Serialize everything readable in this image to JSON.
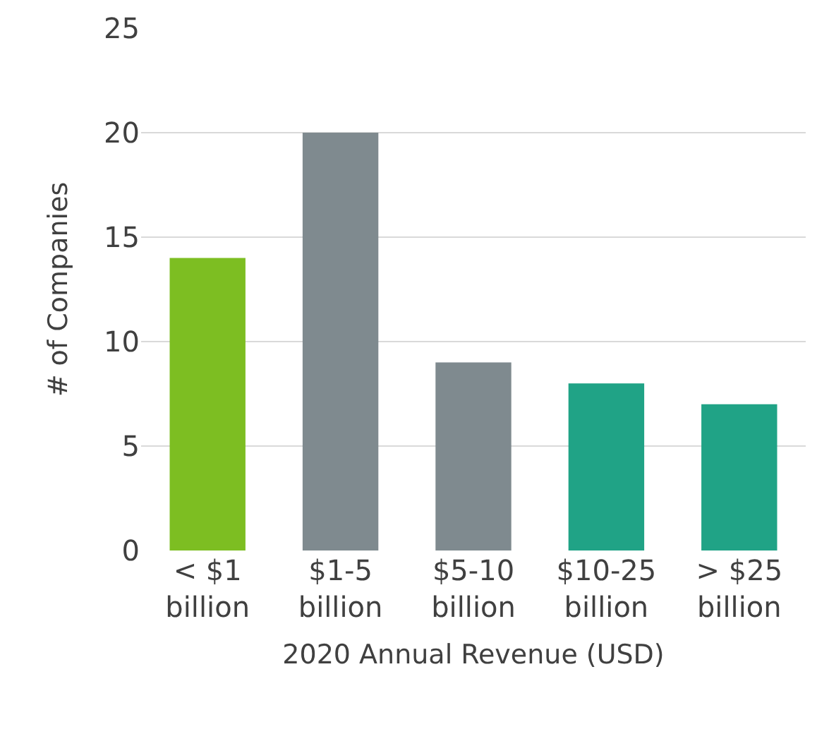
{
  "chart_data": {
    "type": "bar",
    "xlabel": "2020 Annual Revenue (USD)",
    "ylabel": "# of Companies",
    "categories": [
      "< $1\nbillion",
      "$1-5\nbillion",
      "$5-10\nbillion",
      "$10-25\nbillion",
      "> $25\nbillion"
    ],
    "values": [
      14,
      20,
      9,
      8,
      7
    ],
    "colors": [
      "#7dbe22",
      "#7f8a8f",
      "#7f8a8f",
      "#20a386",
      "#20a386"
    ],
    "ylim": [
      0,
      25
    ],
    "yticks": [
      0,
      5,
      10,
      15,
      20,
      25
    ],
    "grid": "y"
  }
}
